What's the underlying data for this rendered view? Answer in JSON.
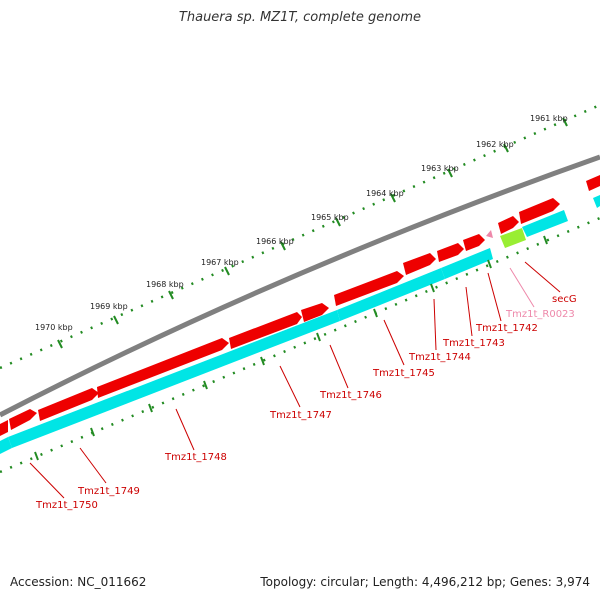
{
  "title": "Thauera sp. MZ1T, complete genome",
  "footer": {
    "accession": "Accession: NC_011662",
    "summary": "Topology: circular; Length: 4,496,212 bp; Genes: 3,974"
  },
  "colors": {
    "backbone": "#808080",
    "cds_top": "#ee0000",
    "cds_bottom": "#00e5e5",
    "rna": "#99ee33",
    "ticks": "#228b22",
    "label": "#cc0000",
    "label_rna": "#ee88aa"
  },
  "scale_labels": [
    "1961 kbp",
    "1962 kbp",
    "1963 kbp",
    "1964 kbp",
    "1965 kbp",
    "1966 kbp",
    "1967 kbp",
    "1968 kbp",
    "1969 kbp",
    "1970 kbp"
  ],
  "gene_labels": [
    "secG",
    "Tmz1t_R0023",
    "Tmz1t_1742",
    "Tmz1t_1743",
    "Tmz1t_1744",
    "Tmz1t_1745",
    "Tmz1t_1746",
    "Tmz1t_1747",
    "Tmz1t_1748",
    "Tmz1t_1749",
    "Tmz1t_1750"
  ]
}
